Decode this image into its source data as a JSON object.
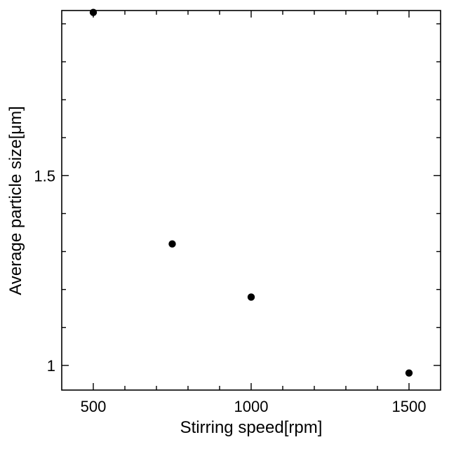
{
  "chart_data": {
    "type": "scatter",
    "title": "",
    "xlabel": "Stirring speed[rpm]",
    "ylabel": "Average particle size[μm]",
    "xlim": [
      400,
      1600
    ],
    "ylim": [
      0.935,
      1.935
    ],
    "x_ticks": [
      500,
      1000,
      1500
    ],
    "x_tick_labels": [
      "500",
      "1000",
      "1500"
    ],
    "x_minor_ticks": [
      600,
      700,
      800,
      900,
      1100,
      1200,
      1300,
      1400
    ],
    "y_ticks": [
      1.0,
      1.5
    ],
    "y_tick_labels": [
      "1",
      "1.5"
    ],
    "y_minor_ticks": [
      1.1,
      1.2,
      1.3,
      1.4,
      1.6,
      1.7,
      1.8,
      1.9
    ],
    "grid": false,
    "legend": "none",
    "marker_color": "#000000",
    "series": [
      {
        "x": [
          500,
          750,
          1000,
          1500
        ],
        "y": [
          1.93,
          1.32,
          1.18,
          0.98
        ]
      }
    ]
  }
}
